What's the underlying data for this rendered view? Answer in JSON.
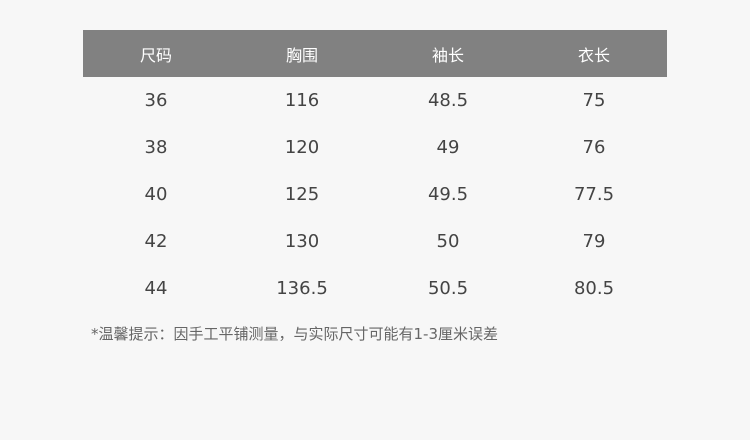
{
  "table": {
    "headers": [
      "尺码",
      "胸围",
      "袖长",
      "衣长"
    ],
    "rows": [
      [
        "36",
        "116",
        "48.5",
        "75"
      ],
      [
        "38",
        "120",
        "49",
        "76"
      ],
      [
        "40",
        "125",
        "49.5",
        "77.5"
      ],
      [
        "42",
        "130",
        "50",
        "79"
      ],
      [
        "44",
        "136.5",
        "50.5",
        "80.5"
      ]
    ]
  },
  "note": "*温馨提示：因手工平铺测量，与实际尺寸可能有1-3厘米误差",
  "colors": {
    "header_bg": "#818181",
    "background": "#f7f7f7",
    "text": "#444444"
  }
}
